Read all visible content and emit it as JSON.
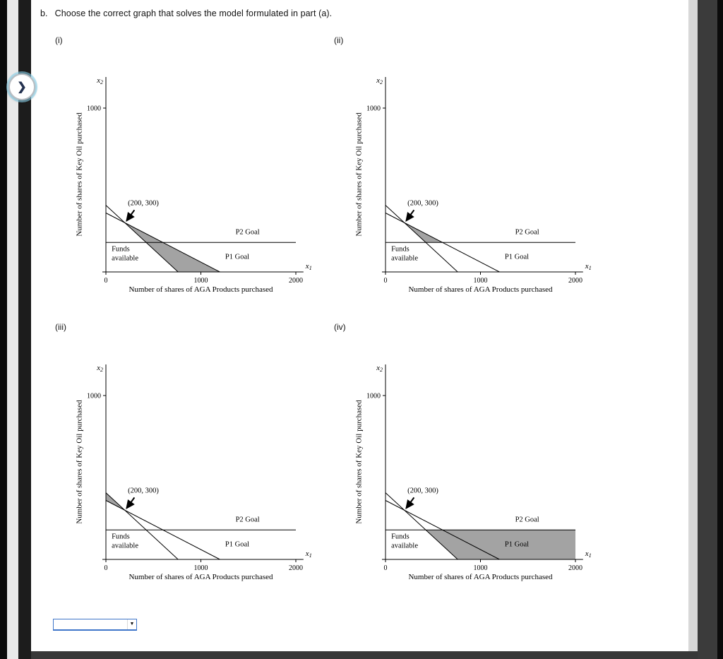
{
  "page": {
    "question": {
      "label": "b.",
      "text": "Choose the correct graph that solves the model formulated in part (a)."
    },
    "icons": {
      "nav_next": "❯",
      "dropdown_caret": "▼"
    },
    "answer_dropdown": {
      "selected_value": ""
    },
    "colors": {
      "shade": "#a3a3a3",
      "line": "#000000",
      "dropdown_border": "#3f76c9"
    }
  },
  "chart_data": [
    {
      "type": "line",
      "option_label": "(i)",
      "xlabel": "Number of shares of AGA Products purchased",
      "ylabel": "Number of shares of Key Oil purchased",
      "x_var": {
        "base": "x",
        "sub": "1"
      },
      "y_var": {
        "base": "x",
        "sub": "2"
      },
      "xlim": [
        0,
        2080
      ],
      "ylim": [
        0,
        1190
      ],
      "x_ticks": [
        {
          "value": 0,
          "label": "0"
        },
        {
          "value": 1000,
          "label": "1000"
        },
        {
          "value": 2000,
          "label": "2000"
        }
      ],
      "y_ticks": [
        {
          "value": 1000,
          "label": "1000"
        }
      ],
      "lines": [
        {
          "name": "p2-goal-line",
          "label_lines": [
            "P2 Goal"
          ],
          "points": [
            [
              0,
              180
            ],
            [
              2000,
              180
            ]
          ],
          "label_pos": [
            1365,
            231
          ]
        },
        {
          "name": "funds-available-line",
          "label_lines": [
            "Funds",
            "available"
          ],
          "points": [
            [
              0,
              407
            ],
            [
              760,
              0
            ]
          ],
          "label_pos": [
            60,
            128
          ]
        },
        {
          "name": "p1-goal-line",
          "label_lines": [
            "P1 Goal"
          ],
          "points": [
            [
              0,
              360
            ],
            [
              1200,
              0
            ]
          ],
          "label_pos": [
            1256,
            80
          ]
        }
      ],
      "annotation": {
        "text": "(200, 300)",
        "target": [
          200,
          300
        ],
        "text_pos": [
          231,
          408
        ]
      },
      "shaded_region": [
        [
          200,
          300
        ],
        [
          1200,
          0
        ],
        [
          760,
          0
        ]
      ]
    },
    {
      "type": "line",
      "option_label": "(ii)",
      "xlabel": "Number of shares of AGA Products purchased",
      "ylabel": "Number of shares of Key Oil purchased",
      "x_var": {
        "base": "x",
        "sub": "1"
      },
      "y_var": {
        "base": "x",
        "sub": "2"
      },
      "xlim": [
        0,
        2080
      ],
      "ylim": [
        0,
        1190
      ],
      "x_ticks": [
        {
          "value": 0,
          "label": "0"
        },
        {
          "value": 1000,
          "label": "1000"
        },
        {
          "value": 2000,
          "label": "2000"
        }
      ],
      "y_ticks": [
        {
          "value": 1000,
          "label": "1000"
        }
      ],
      "lines": [
        {
          "name": "p2-goal-line",
          "label_lines": [
            "P2 Goal"
          ],
          "points": [
            [
              0,
              180
            ],
            [
              2000,
              180
            ]
          ],
          "label_pos": [
            1365,
            231
          ]
        },
        {
          "name": "funds-available-line",
          "label_lines": [
            "Funds",
            "available"
          ],
          "points": [
            [
              0,
              407
            ],
            [
              760,
              0
            ]
          ],
          "label_pos": [
            60,
            128
          ]
        },
        {
          "name": "p1-goal-line",
          "label_lines": [
            "P1 Goal"
          ],
          "points": [
            [
              0,
              360
            ],
            [
              1200,
              0
            ]
          ],
          "label_pos": [
            1256,
            80
          ]
        }
      ],
      "annotation": {
        "text": "(200, 300)",
        "target": [
          200,
          300
        ],
        "text_pos": [
          231,
          408
        ]
      },
      "shaded_region": [
        [
          200,
          300
        ],
        [
          600,
          180
        ],
        [
          424,
          180
        ]
      ]
    },
    {
      "type": "line",
      "option_label": "(iii)",
      "xlabel": "Number of shares of AGA Products purchased",
      "ylabel": "Number of shares of Key Oil purchased",
      "x_var": {
        "base": "x",
        "sub": "1"
      },
      "y_var": {
        "base": "x",
        "sub": "2"
      },
      "xlim": [
        0,
        2080
      ],
      "ylim": [
        0,
        1190
      ],
      "x_ticks": [
        {
          "value": 0,
          "label": "0"
        },
        {
          "value": 1000,
          "label": "1000"
        },
        {
          "value": 2000,
          "label": "2000"
        }
      ],
      "y_ticks": [
        {
          "value": 1000,
          "label": "1000"
        }
      ],
      "lines": [
        {
          "name": "p2-goal-line",
          "label_lines": [
            "P2 Goal"
          ],
          "points": [
            [
              0,
              180
            ],
            [
              2000,
              180
            ]
          ],
          "label_pos": [
            1365,
            231
          ]
        },
        {
          "name": "funds-available-line",
          "label_lines": [
            "Funds",
            "available"
          ],
          "points": [
            [
              0,
              407
            ],
            [
              760,
              0
            ]
          ],
          "label_pos": [
            60,
            128
          ]
        },
        {
          "name": "p1-goal-line",
          "label_lines": [
            "P1 Goal"
          ],
          "points": [
            [
              0,
              360
            ],
            [
              1200,
              0
            ]
          ],
          "label_pos": [
            1256,
            80
          ]
        }
      ],
      "annotation": {
        "text": "(200, 300)",
        "target": [
          200,
          300
        ],
        "text_pos": [
          231,
          408
        ]
      },
      "shaded_region": [
        [
          0,
          360
        ],
        [
          0,
          407
        ],
        [
          200,
          300
        ]
      ]
    },
    {
      "type": "line",
      "option_label": "(iv)",
      "xlabel": "Number of shares of AGA Products purchased",
      "ylabel": "Number of shares of Key Oil purchased",
      "x_var": {
        "base": "x",
        "sub": "1"
      },
      "y_var": {
        "base": "x",
        "sub": "2"
      },
      "xlim": [
        0,
        2080
      ],
      "ylim": [
        0,
        1190
      ],
      "x_ticks": [
        {
          "value": 0,
          "label": "0"
        },
        {
          "value": 1000,
          "label": "1000"
        },
        {
          "value": 2000,
          "label": "2000"
        }
      ],
      "y_ticks": [
        {
          "value": 1000,
          "label": "1000"
        }
      ],
      "lines": [
        {
          "name": "p2-goal-line",
          "label_lines": [
            "P2 Goal"
          ],
          "points": [
            [
              0,
              180
            ],
            [
              2000,
              180
            ]
          ],
          "label_pos": [
            1365,
            231
          ]
        },
        {
          "name": "funds-available-line",
          "label_lines": [
            "Funds",
            "available"
          ],
          "points": [
            [
              0,
              407
            ],
            [
              760,
              0
            ]
          ],
          "label_pos": [
            60,
            128
          ]
        },
        {
          "name": "p1-goal-line",
          "label_lines": [
            "P1 Goal"
          ],
          "points": [
            [
              0,
              360
            ],
            [
              1200,
              0
            ]
          ],
          "label_pos": [
            1256,
            80
          ]
        }
      ],
      "annotation": {
        "text": "(200, 300)",
        "target": [
          200,
          300
        ],
        "text_pos": [
          231,
          408
        ]
      },
      "shaded_region": [
        [
          424,
          180
        ],
        [
          2000,
          180
        ],
        [
          2000,
          0
        ],
        [
          760,
          0
        ]
      ]
    }
  ]
}
